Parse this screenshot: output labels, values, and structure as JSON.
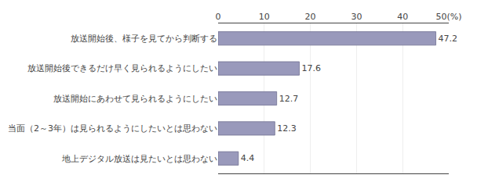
{
  "chart_data": {
    "type": "bar",
    "orientation": "horizontal",
    "categories": [
      "地上デジタル放送は見たいとは思わない",
      "当面（2～3年）は見られるようにしたいとは思わない",
      "放送開始にあわせて見られるようにしたい",
      "放送開始後できるだけ早く見られるようにしたい",
      "放送開始後、様子を見てから判断する"
    ],
    "values": [
      4.4,
      12.3,
      12.7,
      17.6,
      47.2
    ],
    "color": "#9999bb",
    "xlim": [
      0,
      50
    ],
    "xticks": [
      0,
      10,
      20,
      30,
      40,
      {
        "value": 50,
        "label": "50(%)"
      }
    ],
    "grid": true,
    "data_labels": true
  }
}
